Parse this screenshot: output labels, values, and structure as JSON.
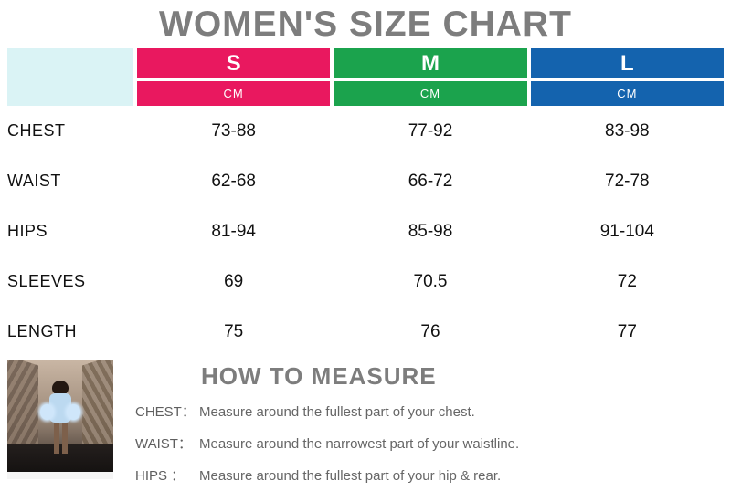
{
  "title": "WOMEN'S SIZE CHART",
  "table": {
    "corner_color": "#daf3f5",
    "columns": [
      {
        "label": "S",
        "unit": "CM",
        "color": "#e9185f"
      },
      {
        "label": "M",
        "unit": "CM",
        "color": "#1ba34d"
      },
      {
        "label": "L",
        "unit": "CM",
        "color": "#1463ae"
      }
    ],
    "rows": [
      {
        "label": "CHEST",
        "values": [
          "73-88",
          "77-92",
          "83-98"
        ]
      },
      {
        "label": "WAIST",
        "values": [
          "62-68",
          "66-72",
          "72-78"
        ]
      },
      {
        "label": "HIPS",
        "values": [
          "81-94",
          "85-98",
          "91-104"
        ]
      },
      {
        "label": "SLEEVES",
        "values": [
          "69",
          "70.5",
          "72"
        ]
      },
      {
        "label": "LENGTH",
        "values": [
          "75",
          "76",
          "77"
        ]
      }
    ]
  },
  "how_to_measure": {
    "title": "HOW TO MEASURE",
    "items": [
      {
        "label": "CHEST：",
        "text": "Measure around the fullest part of your chest."
      },
      {
        "label": "WAIST：",
        "text": "Measure around the narrowest part of your waistline."
      },
      {
        "label": "HIPS ：",
        "text": "Measure around the fullest part of your hip & rear."
      }
    ]
  },
  "photo": {
    "description": "woman in light blue outfit standing by escalators"
  },
  "chart_data": {
    "type": "table",
    "title": "WOMEN'S SIZE CHART",
    "unit": "CM",
    "columns": [
      "S",
      "M",
      "L"
    ],
    "row_headers": [
      "CHEST",
      "WAIST",
      "HIPS",
      "SLEEVES",
      "LENGTH"
    ],
    "values": [
      [
        "73-88",
        "77-92",
        "83-98"
      ],
      [
        "62-68",
        "66-72",
        "72-78"
      ],
      [
        "81-94",
        "85-98",
        "91-104"
      ],
      [
        "69",
        "70.5",
        "72"
      ],
      [
        "75",
        "76",
        "77"
      ]
    ],
    "column_colors": [
      "#e9185f",
      "#1ba34d",
      "#1463ae"
    ]
  }
}
